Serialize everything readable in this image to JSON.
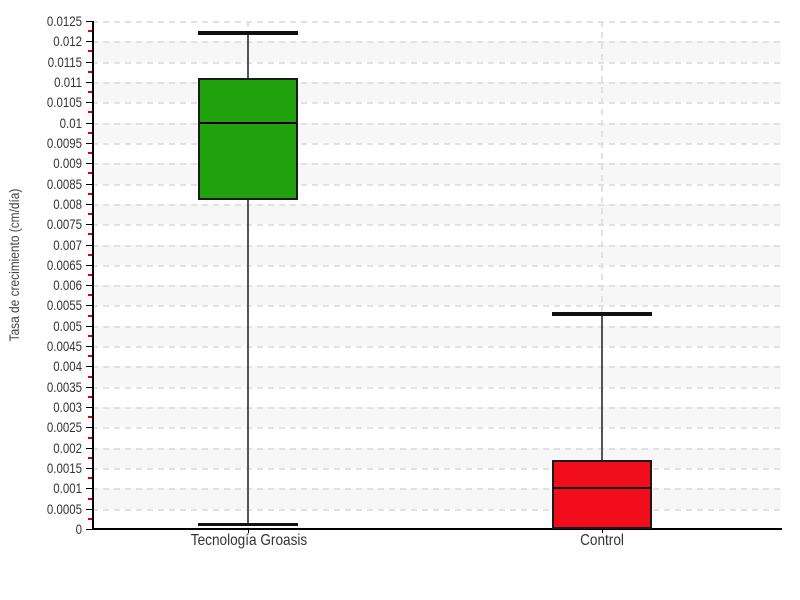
{
  "chart_data": {
    "type": "boxplot",
    "title": "",
    "xlabel": "",
    "ylabel": "Tasa de crecimiento (cm/día)",
    "categories": [
      "Tecnología Groasis",
      "Control"
    ],
    "series": [
      {
        "name": "Tecnología Groasis",
        "min": 0.0001,
        "q1": 0.0081,
        "median": 0.01,
        "q3": 0.0111,
        "max": 0.0122,
        "fill_color": "#22a10e"
      },
      {
        "name": "Control",
        "min": 0,
        "q1": 0,
        "median": 0.001,
        "q3": 0.0017,
        "max": 0.0053,
        "fill_color": "#f20d1c"
      }
    ],
    "ylim": [
      0,
      0.0125
    ],
    "ytick_step": 0.0005,
    "ytick_labels": [
      "0",
      "0.0005",
      "0.001",
      "0.0015",
      "0.002",
      "0.0025",
      "0.003",
      "0.0035",
      "0.004",
      "0.0045",
      "0.005",
      "0.0055",
      "0.006",
      "0.0065",
      "0.007",
      "0.0075",
      "0.008",
      "0.0085",
      "0.009",
      "0.0095",
      "0.01",
      "0.0105",
      "0.011",
      "0.0115",
      "0.012",
      "0.0125"
    ],
    "legend": "none",
    "grid": {
      "horizontal_dashed": true,
      "vertical_dashed_at_categories": true,
      "grid_color": "#e2e2e2",
      "band_color": "#f7f7f7",
      "band_alt_color": "#ffffff"
    },
    "axis_color": "#000000",
    "major_tick_color": "#000000",
    "minor_tick_color": "#e00000",
    "whisker_color": "#555555",
    "box_border_color": "#1a1a1a",
    "median_color": "#000000"
  }
}
